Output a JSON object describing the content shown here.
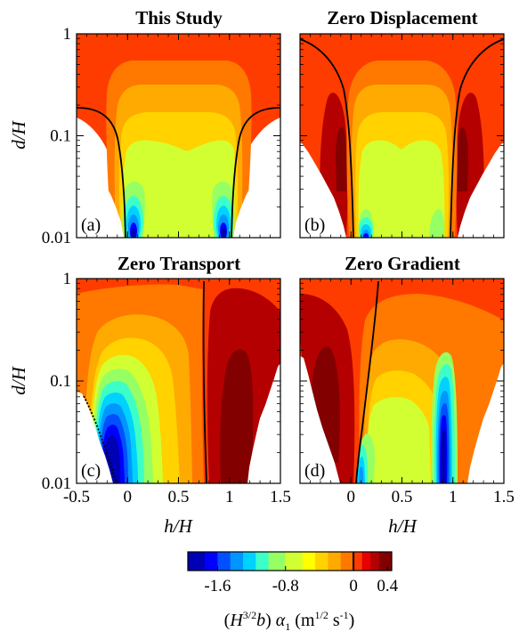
{
  "chart_data": {
    "type": "heatmap",
    "panels": [
      {
        "id": "a",
        "title": "This Study",
        "panel_label": "(a)"
      },
      {
        "id": "b",
        "title": "Zero Displacement",
        "panel_label": "(b)"
      },
      {
        "id": "c",
        "title": "Zero Transport",
        "panel_label": "(c)"
      },
      {
        "id": "d",
        "title": "Zero Gradient",
        "panel_label": "(d)"
      }
    ],
    "x_axis": {
      "label_italic": "h/H",
      "range": [
        -0.5,
        1.5
      ],
      "ticks": [
        -0.5,
        0,
        0.5,
        1,
        1.5
      ],
      "tick_labels": [
        "-0.5",
        "0",
        "0.5",
        "1",
        "1.5"
      ],
      "shared_tick_labels": [
        "0",
        "0.5",
        "1",
        "1.5"
      ]
    },
    "y_axis": {
      "label_italic": "d/H",
      "scale": "log",
      "range": [
        0.01,
        1
      ],
      "ticks": [
        0.01,
        0.1,
        1
      ],
      "tick_labels": [
        "0.01",
        "0.1",
        "1"
      ]
    },
    "colorbar": {
      "range": [
        -1.95,
        0.45
      ],
      "levels": [
        -1.95,
        -1.75,
        -1.6,
        -1.45,
        -1.3,
        -1.15,
        -1.0,
        -0.8,
        -0.6,
        -0.45,
        -0.3,
        -0.15,
        0,
        0.1,
        0.2,
        0.3,
        0.45
      ],
      "colors": [
        "#0000b4",
        "#0000ff",
        "#0050ff",
        "#0096ff",
        "#00d2ff",
        "#3cffc8",
        "#96ff64",
        "#d2ff32",
        "#ffff00",
        "#ffd200",
        "#ffaa00",
        "#ff7800",
        "#ff3c00",
        "#e60000",
        "#b40000",
        "#820000"
      ],
      "ticks": [
        -1.6,
        -0.8,
        0,
        0.4
      ],
      "tick_labels": [
        "-1.6",
        "-0.8",
        "0",
        "0.4"
      ],
      "zero_line": 0,
      "label_prefix": "(",
      "label_H": "H",
      "label_H_exp": "3/2",
      "label_b": "b",
      "label_mid": ") ",
      "label_alpha": "α",
      "label_alpha_sub": "1",
      "label_units": " (m",
      "label_units_exp": "1/2",
      "label_units_end": " s",
      "label_units_exp2": "-1",
      "label_close": ")"
    }
  }
}
